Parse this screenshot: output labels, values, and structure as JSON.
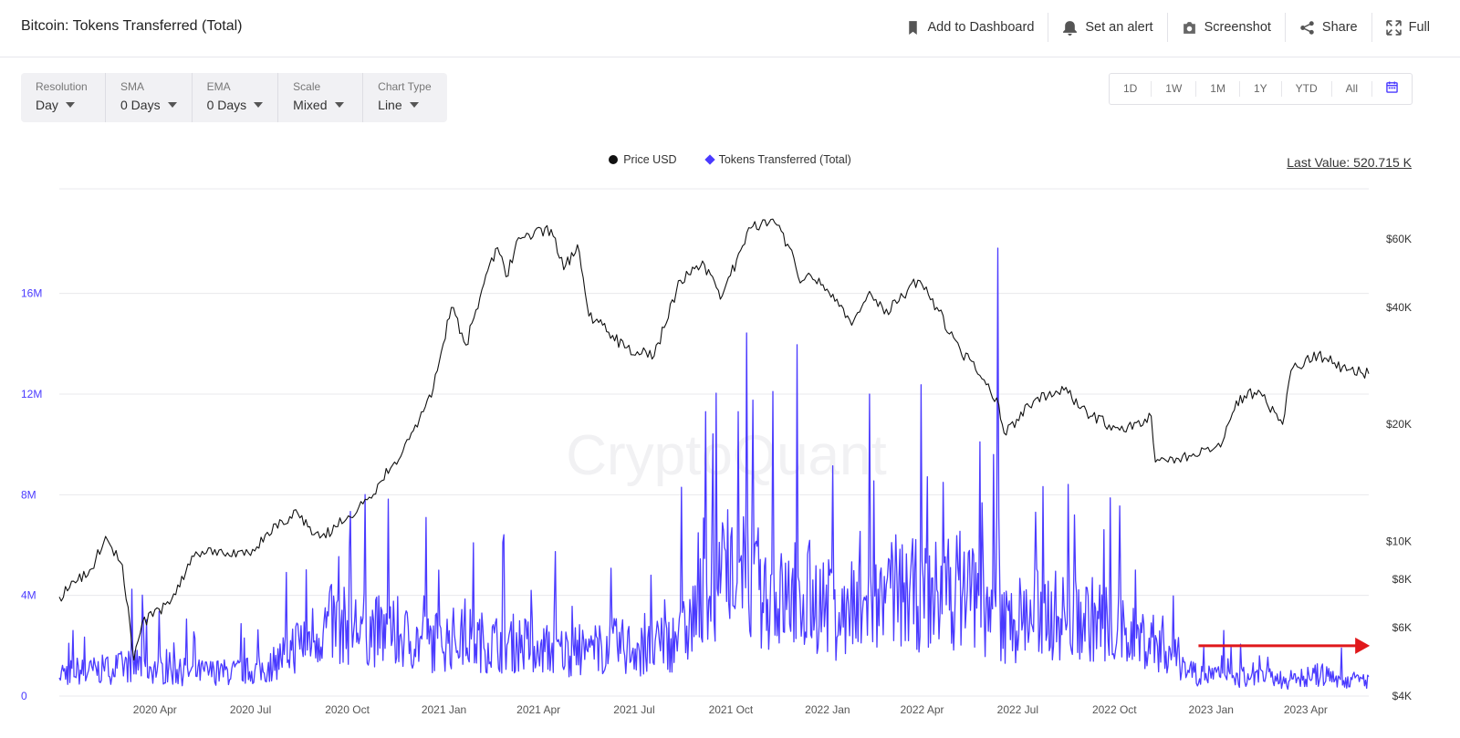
{
  "header": {
    "title": "Bitcoin: Tokens Transferred (Total)",
    "actions": [
      {
        "label": "Add to Dashboard",
        "icon": "bookmark-icon"
      },
      {
        "label": "Set an alert",
        "icon": "bell-icon"
      },
      {
        "label": "Screenshot",
        "icon": "camera-icon"
      },
      {
        "label": "Share",
        "icon": "share-icon"
      },
      {
        "label": "Full",
        "icon": "fullscreen-icon"
      }
    ]
  },
  "controls": [
    {
      "label": "Resolution",
      "value": "Day"
    },
    {
      "label": "SMA",
      "value": "0 Days"
    },
    {
      "label": "EMA",
      "value": "0 Days"
    },
    {
      "label": "Scale",
      "value": "Mixed"
    },
    {
      "label": "Chart Type",
      "value": "Line"
    }
  ],
  "ranges": [
    "1D",
    "1W",
    "1M",
    "1Y",
    "YTD",
    "All"
  ],
  "legend": {
    "price": "Price USD",
    "tokens": "Tokens Transferred (Total)"
  },
  "last_value": "Last Value: 520.715 K",
  "watermark": "CryptoQuant",
  "colors": {
    "price": "#111111",
    "tokens": "#4a3aff",
    "arrow": "#e0181b",
    "grid": "#e8e8ec"
  },
  "chart_data": {
    "type": "line",
    "x_ticks": [
      "2020 Apr",
      "2020 Jul",
      "2020 Oct",
      "2021 Jan",
      "2021 Apr",
      "2021 Jul",
      "2021 Oct",
      "2022 Jan",
      "2022 Apr",
      "2022 Jul",
      "2022 Oct",
      "2023 Jan",
      "2023 Apr"
    ],
    "y_left": {
      "ticks": [
        "0",
        "4M",
        "8M",
        "12M",
        "16M"
      ],
      "range": [
        0,
        17800000
      ],
      "color": "#4a3aff"
    },
    "y_right": {
      "ticks": [
        "$4K",
        "$6K",
        "$8K",
        "$10K",
        "$20K",
        "$40K",
        "$60K"
      ],
      "scale": "log",
      "color": "#333333"
    },
    "series": [
      {
        "name": "Price USD",
        "axis": "right",
        "x": [
          "2020-01-01",
          "2020-02-01",
          "2020-02-14",
          "2020-03-01",
          "2020-03-12",
          "2020-03-20",
          "2020-04-15",
          "2020-05-10",
          "2020-06-01",
          "2020-07-01",
          "2020-07-25",
          "2020-08-15",
          "2020-09-05",
          "2020-09-20",
          "2020-10-20",
          "2020-11-15",
          "2020-12-01",
          "2020-12-20",
          "2021-01-08",
          "2021-01-22",
          "2021-02-08",
          "2021-02-21",
          "2021-03-01",
          "2021-03-13",
          "2021-04-13",
          "2021-04-25",
          "2021-05-08",
          "2021-05-19",
          "2021-06-01",
          "2021-06-22",
          "2021-07-20",
          "2021-08-14",
          "2021-09-06",
          "2021-09-21",
          "2021-10-20",
          "2021-11-10",
          "2021-11-26",
          "2021-12-04",
          "2021-12-20",
          "2022-01-10",
          "2022-01-24",
          "2022-02-10",
          "2022-02-24",
          "2022-03-28",
          "2022-04-15",
          "2022-05-09",
          "2022-05-20",
          "2022-06-13",
          "2022-06-18",
          "2022-07-20",
          "2022-08-14",
          "2022-09-10",
          "2022-10-10",
          "2022-11-05",
          "2022-11-09",
          "2022-11-21",
          "2022-12-15",
          "2023-01-10",
          "2023-01-25",
          "2023-02-15",
          "2023-03-10",
          "2023-03-18",
          "2023-04-13",
          "2023-05-10",
          "2023-05-31"
        ],
        "values": [
          7200,
          8500,
          10300,
          8700,
          4950,
          6200,
          6900,
          9400,
          9500,
          9200,
          11100,
          11800,
          10200,
          10900,
          12800,
          16000,
          19000,
          23500,
          40000,
          32000,
          46000,
          57000,
          48000,
          60500,
          63500,
          50000,
          58000,
          38000,
          36000,
          31500,
          30000,
          47000,
          51500,
          42000,
          64000,
          67500,
          57000,
          48000,
          47000,
          42000,
          36000,
          44000,
          38500,
          47000,
          40000,
          30000,
          29000,
          22500,
          19000,
          23500,
          24500,
          21000,
          19200,
          21000,
          16000,
          16000,
          16800,
          17500,
          23000,
          24500,
          20000,
          27500,
          30300,
          27500,
          27000
        ]
      },
      {
        "name": "Tokens Transferred (Total)",
        "axis": "left",
        "x": [
          "2020-01",
          "2020-02",
          "2020-03",
          "2020-04",
          "2020-05",
          "2020-06",
          "2020-07",
          "2020-08",
          "2020-09",
          "2020-10",
          "2020-11",
          "2020-12",
          "2021-01",
          "2021-02",
          "2021-03",
          "2021-04",
          "2021-05",
          "2021-06",
          "2021-07",
          "2021-08",
          "2021-09",
          "2021-10",
          "2021-11",
          "2021-12",
          "2022-01",
          "2022-02",
          "2022-03",
          "2022-04",
          "2022-05",
          "2022-06",
          "2022-07",
          "2022-08",
          "2022-09",
          "2022-10",
          "2022-11",
          "2022-12",
          "2023-01",
          "2023-02",
          "2023-03",
          "2023-04",
          "2023-05"
        ],
        "values": [
          900000,
          1000000,
          1200000,
          900000,
          900000,
          900000,
          1000000,
          2000000,
          2700000,
          2600000,
          2300000,
          2000000,
          2200000,
          2000000,
          2000000,
          1700000,
          1700000,
          1900000,
          1700000,
          2200000,
          4300000,
          4500000,
          3600000,
          3800000,
          3000000,
          3300000,
          3800000,
          3800000,
          4200000,
          2600000,
          3200000,
          3000000,
          2900000,
          2300000,
          2000000,
          900000,
          700000,
          700000,
          600000,
          800000,
          600000
        ],
        "peaks": [
          {
            "x": "2021-08-15",
            "value": 8300000
          },
          {
            "x": "2021-09-07",
            "value": 11300000
          },
          {
            "x": "2021-10-08",
            "value": 11300000
          },
          {
            "x": "2021-11-10",
            "value": 12100000
          },
          {
            "x": "2022-02-10",
            "value": 12000000
          },
          {
            "x": "2022-06-12",
            "value": 17800000
          }
        ]
      }
    ],
    "annotations": [
      {
        "type": "arrow",
        "direction": "right",
        "color": "#e0181b",
        "x_start": "2022-12-20",
        "x_end": "2023-06-01",
        "value": 2000000
      }
    ]
  }
}
